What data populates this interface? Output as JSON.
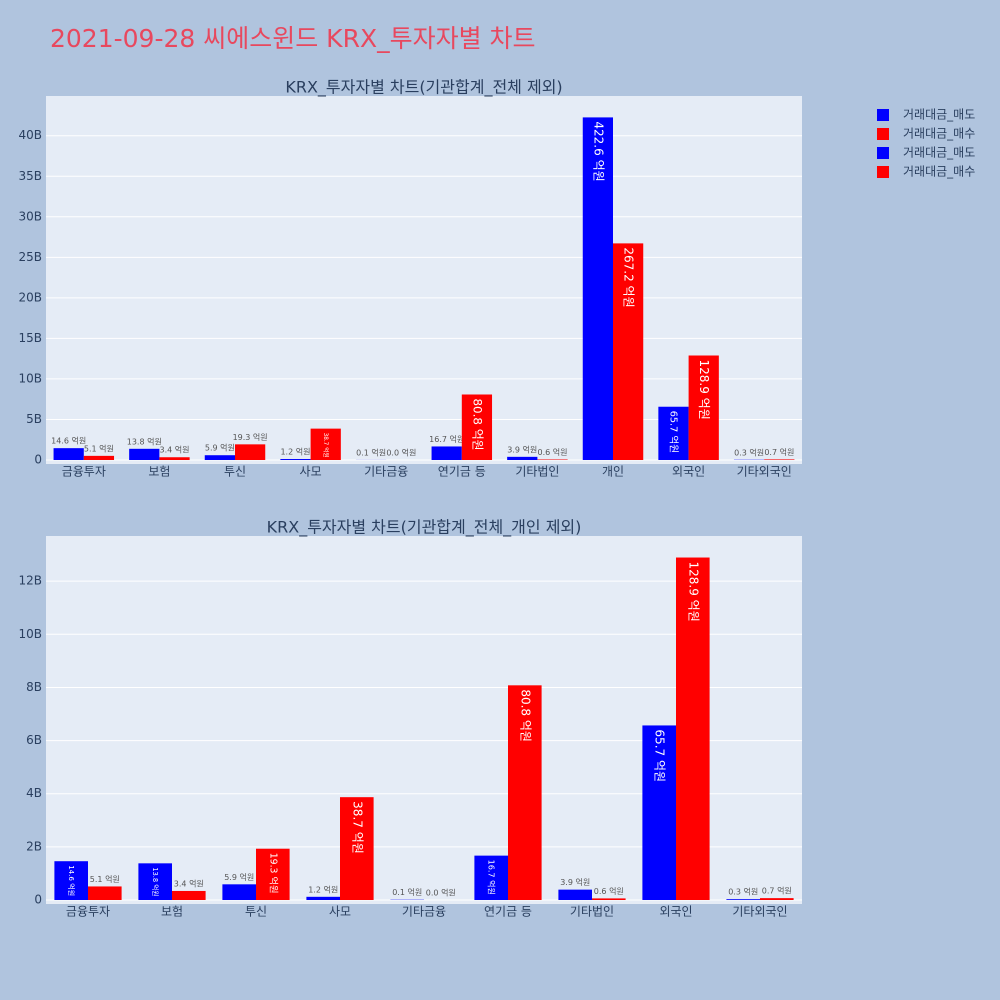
{
  "title": "2021-09-28 씨에스윈드 KRX_투자자별 차트",
  "chart_data": [
    {
      "type": "bar",
      "title": "KRX_투자자별 차트(기관합계_전체 제외)",
      "categories": [
        "금융투자",
        "보험",
        "투신",
        "사모",
        "기타금융",
        "연기금 등",
        "기타법인",
        "개인",
        "외국인",
        "기타외국인"
      ],
      "series": [
        {
          "name": "거래대금_매도",
          "color": "#0000ff",
          "values": [
            1460000000,
            1380000000,
            590000000,
            120000000,
            10000000,
            1670000000,
            390000000,
            42260000000,
            6570000000,
            30000000
          ],
          "value_labels": [
            "14.6 억원",
            "13.8 억원",
            "5.9 억원",
            "1.2 억원",
            "0.1 억원",
            "16.7 억원",
            "3.9 억원",
            "422.6 억원",
            "65.7 억원",
            "0.3 억원"
          ]
        },
        {
          "name": "거래대금_매수",
          "color": "#ff0000",
          "values": [
            510000000,
            340000000,
            1930000000,
            3870000000,
            0,
            8080000000,
            60000000,
            26720000000,
            12890000000,
            70000000
          ],
          "value_labels": [
            "5.1 억원",
            "3.4 억원",
            "19.3 억원",
            "38.7 억원",
            "0.0 억원",
            "80.8 억원",
            "0.6 억원",
            "267.2 억원",
            "128.9 억원",
            "0.7 억원"
          ]
        }
      ],
      "ylim": [
        0,
        44900000000
      ],
      "yticks": [
        0,
        {
          "value": 5000000000,
          "label": "5B"
        },
        {
          "value": 10000000000,
          "label": "10B"
        },
        {
          "value": 15000000000,
          "label": "15B"
        },
        {
          "value": 20000000000,
          "label": "20B"
        },
        {
          "value": 25000000000,
          "label": "25B"
        },
        {
          "value": 30000000000,
          "label": "30B"
        },
        {
          "value": 35000000000,
          "label": "35B"
        },
        {
          "value": 40000000000,
          "label": "40B"
        }
      ],
      "grid": true
    },
    {
      "type": "bar",
      "title": "KRX_투자자별 차트(기관합계_전체_개인 제외)",
      "categories": [
        "금융투자",
        "보험",
        "투신",
        "사모",
        "기타금융",
        "연기금 등",
        "기타법인",
        "외국인",
        "기타외국인"
      ],
      "series": [
        {
          "name": "거래대금_매도",
          "color": "#0000ff",
          "values": [
            1460000000,
            1380000000,
            590000000,
            120000000,
            10000000,
            1670000000,
            390000000,
            6570000000,
            30000000
          ],
          "value_labels": [
            "14.6 억원",
            "13.8 억원",
            "5.9 억원",
            "1.2 억원",
            "0.1 억원",
            "16.7 억원",
            "3.9 억원",
            "65.7 억원",
            "0.3 억원"
          ]
        },
        {
          "name": "거래대금_매수",
          "color": "#ff0000",
          "values": [
            510000000,
            340000000,
            1930000000,
            3870000000,
            0,
            8080000000,
            60000000,
            12890000000,
            70000000
          ],
          "value_labels": [
            "5.1 억원",
            "3.4 억원",
            "19.3 억원",
            "38.7 억원",
            "0.0 억원",
            "80.8 억원",
            "0.6 억원",
            "128.9 억원",
            "0.7 억원"
          ]
        }
      ],
      "ylim": [
        0,
        13700000000
      ],
      "yticks": [
        0,
        {
          "value": 2000000000,
          "label": "2B"
        },
        {
          "value": 4000000000,
          "label": "4B"
        },
        {
          "value": 6000000000,
          "label": "6B"
        },
        {
          "value": 8000000000,
          "label": "8B"
        },
        {
          "value": 10000000000,
          "label": "10B"
        },
        {
          "value": 12000000000,
          "label": "12B"
        }
      ],
      "grid": true
    }
  ]
}
